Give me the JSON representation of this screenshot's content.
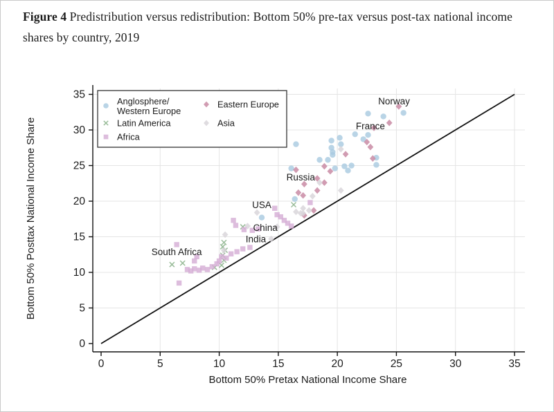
{
  "figure": {
    "label": "Figure 4",
    "title": " Predistribution versus redistribution: Bottom 50% pre-tax versus post-tax national income shares by country, 2019"
  },
  "chart_data": {
    "type": "scatter",
    "title": "Figure 4 Predistribution versus redistribution: Bottom 50% pre-tax versus post-tax national income shares by country, 2019",
    "xlabel": "Bottom 50% Pretax National Income Share",
    "ylabel": "Bottom 50% Posttax National Income Share",
    "xlim": [
      0,
      35
    ],
    "ylim": [
      0,
      35
    ],
    "xticks": [
      0,
      5,
      10,
      15,
      20,
      25,
      30,
      35
    ],
    "yticks": [
      0,
      5,
      10,
      15,
      20,
      25,
      30,
      35
    ],
    "grid": true,
    "grid_color": "#e4e4e4",
    "axis_color": "#111111",
    "legend_position": "top-left",
    "reference_line": {
      "from": [
        0,
        0
      ],
      "to": [
        35,
        35
      ],
      "color": "#111111"
    },
    "series": [
      {
        "name": "Anglosphere/Western Europe",
        "marker": "circle",
        "color": "#a9cbe1",
        "points": [
          [
            25.6,
            32.4
          ],
          [
            23.9,
            31.9
          ],
          [
            22.6,
            32.3
          ],
          [
            21.5,
            29.4
          ],
          [
            22.6,
            29.3
          ],
          [
            22.2,
            28.7
          ],
          [
            20.2,
            28.9
          ],
          [
            19.5,
            28.5
          ],
          [
            20.3,
            28.0
          ],
          [
            16.5,
            28.0
          ],
          [
            19.5,
            27.5
          ],
          [
            19.6,
            26.9
          ],
          [
            23.3,
            26.1
          ],
          [
            19.6,
            26.5
          ],
          [
            19.2,
            25.8
          ],
          [
            18.5,
            25.8
          ],
          [
            23.3,
            25.1
          ],
          [
            21.2,
            25.0
          ],
          [
            20.6,
            24.9
          ],
          [
            19.8,
            24.6
          ],
          [
            16.1,
            24.6
          ],
          [
            20.9,
            24.3
          ],
          [
            16.4,
            20.3
          ],
          [
            13.6,
            17.7
          ]
        ]
      },
      {
        "name": "Eastern Europe",
        "marker": "diamond",
        "color": "#c98ba4",
        "points": [
          [
            25.2,
            33.3
          ],
          [
            24.4,
            31.0
          ],
          [
            23.1,
            30.3
          ],
          [
            22.5,
            28.3
          ],
          [
            22.8,
            27.6
          ],
          [
            20.7,
            26.6
          ],
          [
            23.0,
            26.0
          ],
          [
            18.9,
            24.9
          ],
          [
            19.4,
            24.2
          ],
          [
            16.5,
            24.4
          ],
          [
            17.2,
            22.4
          ],
          [
            18.9,
            22.6
          ],
          [
            18.3,
            23.2
          ],
          [
            18.3,
            21.5
          ],
          [
            16.7,
            21.2
          ],
          [
            17.1,
            20.8
          ],
          [
            18.0,
            18.7
          ],
          [
            17.2,
            18.0
          ]
        ]
      },
      {
        "name": "Latin America",
        "marker": "x",
        "color": "#93b893",
        "points": [
          [
            16.3,
            19.5
          ],
          [
            12.0,
            16.4
          ],
          [
            10.4,
            14.2
          ],
          [
            10.3,
            13.6
          ],
          [
            10.5,
            13.1
          ],
          [
            10.3,
            12.4
          ],
          [
            10.4,
            11.7
          ],
          [
            10.2,
            11.0
          ],
          [
            6.9,
            11.3
          ],
          [
            6.0,
            11.1
          ],
          [
            9.6,
            10.7
          ]
        ]
      },
      {
        "name": "Asia",
        "marker": "diamond",
        "color": "#d9d6da",
        "points": [
          [
            20.3,
            27.3
          ],
          [
            18.5,
            22.6
          ],
          [
            20.3,
            21.5
          ],
          [
            17.9,
            20.7
          ],
          [
            17.1,
            19.0
          ],
          [
            17.6,
            18.7
          ],
          [
            17.1,
            18.3
          ],
          [
            16.5,
            18.5
          ],
          [
            16.9,
            18.3
          ],
          [
            13.2,
            18.4
          ],
          [
            14.9,
            16.4
          ],
          [
            14.4,
            14.7
          ],
          [
            10.5,
            15.3
          ],
          [
            10.4,
            13.1
          ],
          [
            12.4,
            16.5
          ]
        ]
      },
      {
        "name": "Africa",
        "marker": "square",
        "color": "#d5aed6",
        "points": [
          [
            6.4,
            13.9
          ],
          [
            8.1,
            12.2
          ],
          [
            7.9,
            11.6
          ],
          [
            6.6,
            8.5
          ],
          [
            7.3,
            10.4
          ],
          [
            7.6,
            10.2
          ],
          [
            7.9,
            10.5
          ],
          [
            8.3,
            10.3
          ],
          [
            8.6,
            10.6
          ],
          [
            9.0,
            10.4
          ],
          [
            9.4,
            10.8
          ],
          [
            9.8,
            11.2
          ],
          [
            10.0,
            11.6
          ],
          [
            10.2,
            12.2
          ],
          [
            10.6,
            12.0
          ],
          [
            11.0,
            12.6
          ],
          [
            11.5,
            12.9
          ],
          [
            12.0,
            13.3
          ],
          [
            12.6,
            13.5
          ],
          [
            11.2,
            17.3
          ],
          [
            11.4,
            16.6
          ],
          [
            12.1,
            16.0
          ],
          [
            12.8,
            15.9
          ],
          [
            13.3,
            16.1
          ],
          [
            14.7,
            19.0
          ],
          [
            14.9,
            18.1
          ],
          [
            15.2,
            17.8
          ],
          [
            15.5,
            17.3
          ],
          [
            15.8,
            16.9
          ],
          [
            16.1,
            16.5
          ],
          [
            17.7,
            19.8
          ]
        ]
      }
    ],
    "annotations": [
      {
        "label": "Norway",
        "x": 24.8,
        "y": 34.0
      },
      {
        "label": "France",
        "x": 22.8,
        "y": 30.5
      },
      {
        "label": "Russia",
        "x": 16.9,
        "y": 23.3
      },
      {
        "label": "USA",
        "x": 13.6,
        "y": 19.4
      },
      {
        "label": "China",
        "x": 13.9,
        "y": 16.2
      },
      {
        "label": "India",
        "x": 13.1,
        "y": 14.6
      },
      {
        "label": "South Africa",
        "x": 6.4,
        "y": 12.8
      }
    ],
    "legend": {
      "columns": [
        {
          "items": [
            {
              "series": 0,
              "lines": [
                "Anglosphere/",
                "Western Europe"
              ]
            },
            {
              "series": 2,
              "lines": [
                "Latin America"
              ]
            },
            {
              "series": 4,
              "lines": [
                "Africa"
              ]
            }
          ]
        },
        {
          "items": [
            {
              "series": 1,
              "lines": [
                "Eastern Europe"
              ]
            },
            {
              "series": 3,
              "lines": [
                "Asia"
              ]
            }
          ]
        }
      ]
    }
  }
}
